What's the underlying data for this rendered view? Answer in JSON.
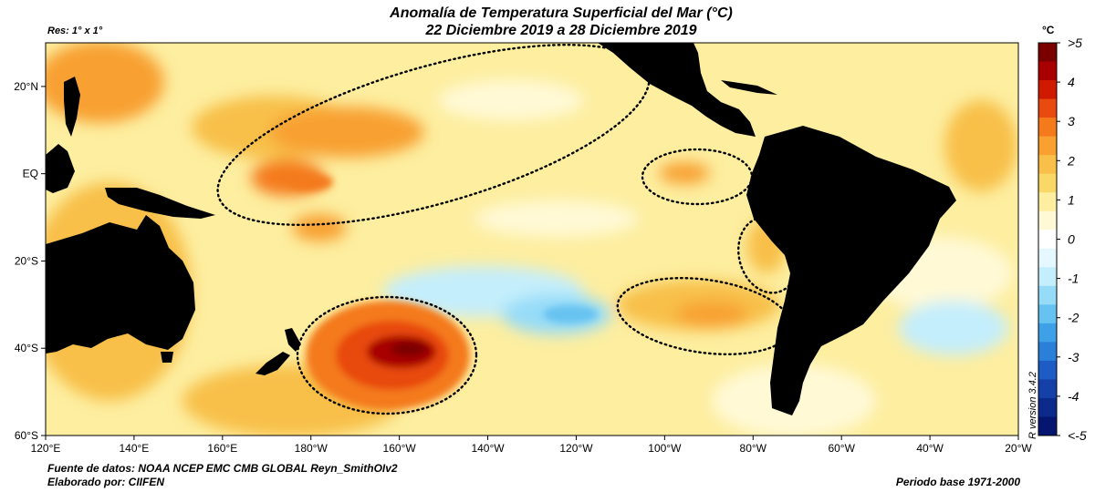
{
  "title": {
    "line1": "Anomalía de Temperatura Superficial del Mar (°C)",
    "line2": "22 Diciembre 2019 a 28 Diciembre 2019"
  },
  "resolution": "Res: 1° x 1°",
  "footer": {
    "source": "Fuente de datos: NOAA NCEP EMC CMB GLOBAL Reyn_SmithOIv2",
    "author": "Elaborado por: CIIFEN",
    "base_period": "Periodo base 1971-2000"
  },
  "version_label": "R version 3.4.2",
  "colorbar": {
    "unit": "°C",
    "labels": [
      ">5",
      "4",
      "3",
      "2",
      "1",
      "0",
      "-1",
      "-2",
      "-3",
      "-4",
      "<-5"
    ],
    "colors": [
      "#7a0000",
      "#a80000",
      "#d01a00",
      "#e84a10",
      "#f47a1c",
      "#f8a030",
      "#f8c048",
      "#fad868",
      "#fdeea0",
      "#fff9d6",
      "#ffffff",
      "#e6f8ff",
      "#c4eefc",
      "#96dcf8",
      "#66c2f0",
      "#3ea0e6",
      "#2a7fd8",
      "#1c5cc4",
      "#1440a8",
      "#0c2a8a",
      "#061670"
    ]
  },
  "map": {
    "lon_labels": [
      "120°E",
      "140°E",
      "160°E",
      "180°W",
      "160°W",
      "140°W",
      "120°W",
      "100°W",
      "80°W",
      "60°W",
      "40°W",
      "20°W"
    ],
    "lat_labels": [
      "20°N",
      "EQ",
      "20°S",
      "40°S",
      "60°S"
    ],
    "lat_range": [
      -60,
      30
    ],
    "lon_range": [
      120,
      340
    ],
    "anomaly_regions": [
      {
        "name": "south-pacific-warm-core",
        "lon": 197,
        "lat": -42,
        "value": 5
      },
      {
        "name": "central-pacific-warm",
        "lon": 185,
        "lat": 3,
        "value": 2
      },
      {
        "name": "south-east-pacific-cool",
        "lon": 238,
        "lat": -33,
        "value": -2
      }
    ],
    "highlighted_ellipses": [
      {
        "name": "north-central-pacific",
        "center_lon": 202,
        "center_lat": 11
      },
      {
        "name": "galapagos",
        "center_lon": 269,
        "center_lat": -1
      },
      {
        "name": "peru-coast",
        "center_lon": 283,
        "center_lat": -18
      },
      {
        "name": "southeast-pacific",
        "center_lon": 262,
        "center_lat": -34
      },
      {
        "name": "new-zealand-east",
        "center_lon": 200,
        "center_lat": -41
      }
    ]
  }
}
